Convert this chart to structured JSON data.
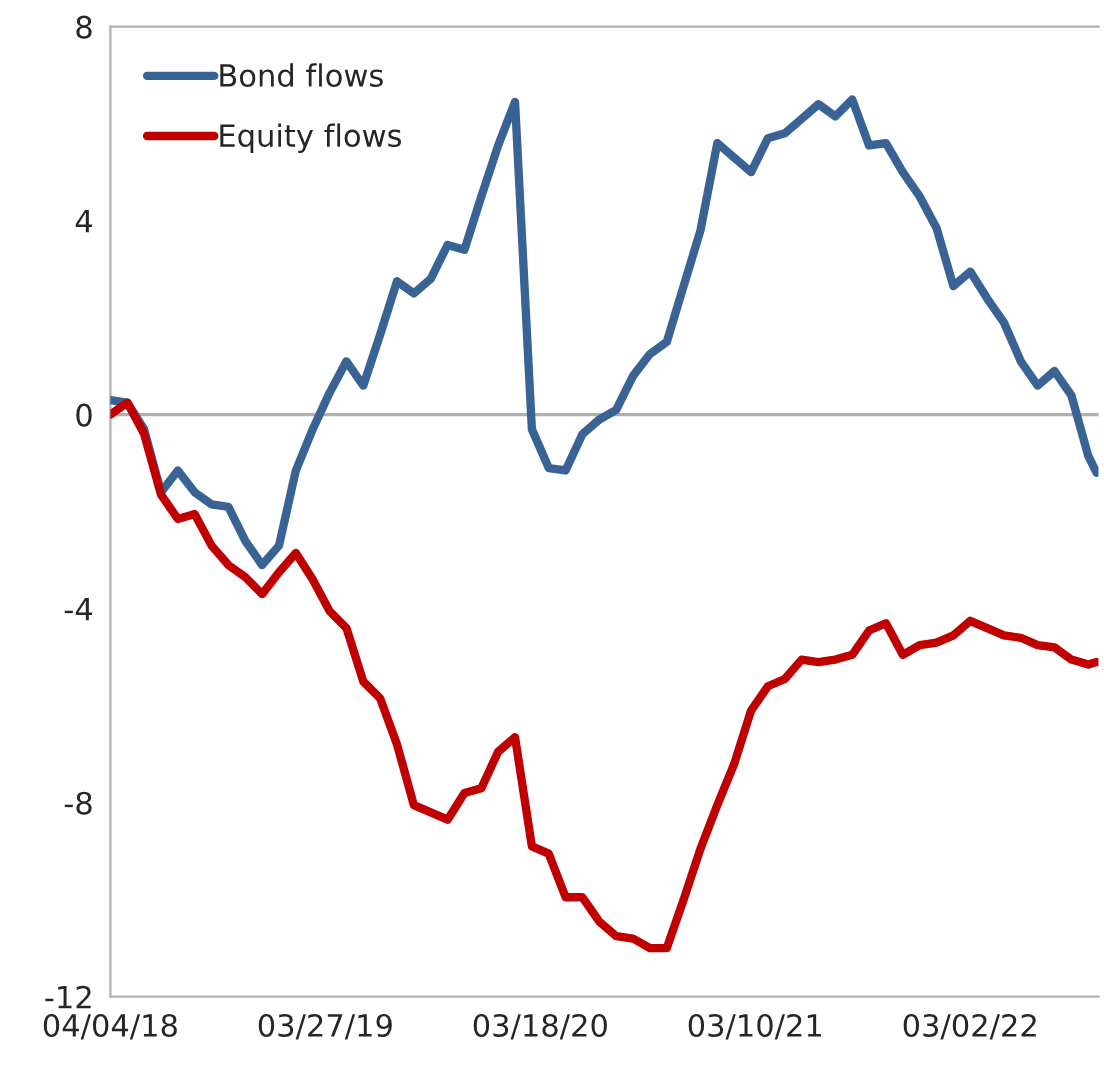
{
  "chart_data": {
    "type": "line",
    "x": [
      "2018-04-04",
      "2018-05-02",
      "2018-05-30",
      "2018-06-27",
      "2018-07-25",
      "2018-08-22",
      "2018-09-19",
      "2018-10-17",
      "2018-11-14",
      "2018-12-12",
      "2019-01-09",
      "2019-02-06",
      "2019-03-06",
      "2019-04-03",
      "2019-05-01",
      "2019-05-29",
      "2019-06-26",
      "2019-07-24",
      "2019-08-21",
      "2019-09-18",
      "2019-10-16",
      "2019-11-13",
      "2019-12-11",
      "2020-01-08",
      "2020-02-05",
      "2020-03-04",
      "2020-04-01",
      "2020-04-29",
      "2020-05-27",
      "2020-06-24",
      "2020-07-22",
      "2020-08-19",
      "2020-09-16",
      "2020-10-14",
      "2020-11-11",
      "2020-12-09",
      "2021-01-06",
      "2021-02-03",
      "2021-03-03",
      "2021-03-31",
      "2021-04-28",
      "2021-05-26",
      "2021-06-23",
      "2021-07-21",
      "2021-08-18",
      "2021-09-15",
      "2021-10-13",
      "2021-11-10",
      "2021-12-08",
      "2022-01-05",
      "2022-02-02",
      "2022-03-02",
      "2022-03-30",
      "2022-04-27",
      "2022-05-25",
      "2022-06-22",
      "2022-07-20",
      "2022-08-17",
      "2022-09-14",
      "2022-09-28"
    ],
    "series": [
      {
        "name": "Bond flows",
        "color": "#3a6395",
        "values": [
          0.3,
          0.25,
          -0.3,
          -1.6,
          -1.15,
          -1.6,
          -1.85,
          -1.9,
          -2.6,
          -3.1,
          -2.7,
          -1.15,
          -0.3,
          0.45,
          1.1,
          0.6,
          1.65,
          2.75,
          2.5,
          2.8,
          3.5,
          3.4,
          4.5,
          5.55,
          6.45,
          -0.3,
          -1.1,
          -1.15,
          -0.4,
          -0.1,
          0.1,
          0.8,
          1.25,
          1.5,
          2.65,
          3.8,
          5.6,
          5.3,
          5.0,
          5.7,
          5.8,
          6.1,
          6.4,
          6.15,
          6.5,
          5.55,
          5.6,
          5.0,
          4.5,
          3.85,
          2.65,
          2.95,
          2.4,
          1.9,
          1.1,
          0.6,
          0.9,
          0.4,
          -0.85,
          -1.2
        ]
      },
      {
        "name": "Equity flows",
        "color": "#c00000",
        "values": [
          0,
          0.25,
          -0.4,
          -1.65,
          -2.15,
          -2.05,
          -2.7,
          -3.1,
          -3.35,
          -3.7,
          -3.25,
          -2.85,
          -3.4,
          -4.05,
          -4.4,
          -5.5,
          -5.85,
          -6.8,
          -8.05,
          -8.2,
          -8.35,
          -7.8,
          -7.7,
          -6.95,
          -6.65,
          -8.9,
          -9.05,
          -9.95,
          -9.95,
          -10.45,
          -10.75,
          -10.8,
          -11.0,
          -11.0,
          -10.0,
          -8.95,
          -8.05,
          -7.2,
          -6.1,
          -5.6,
          -5.45,
          -5.05,
          -5.1,
          -5.05,
          -4.95,
          -4.45,
          -4.3,
          -4.95,
          -4.75,
          -4.7,
          -4.55,
          -4.25,
          -4.4,
          -4.55,
          -4.6,
          -4.75,
          -4.8,
          -5.05,
          -5.15,
          -5.1
        ]
      }
    ],
    "xlim": [
      "2018-04-04",
      "2022-10-01"
    ],
    "xticks": [
      {
        "value": "2018-04-04",
        "label": "04/04/18"
      },
      {
        "value": "2019-03-27",
        "label": "03/27/19"
      },
      {
        "value": "2020-03-18",
        "label": "03/18/20"
      },
      {
        "value": "2021-03-10",
        "label": "03/10/21"
      },
      {
        "value": "2022-03-02",
        "label": "03/02/22"
      }
    ],
    "ylim": [
      -12,
      8
    ],
    "yticks": [
      -12,
      -8,
      -4,
      0,
      4,
      8
    ],
    "ref_lines": [
      {
        "axis": "y",
        "value": 0,
        "color": "#b0b0b0"
      }
    ],
    "grid": false,
    "legend": "top left",
    "marker": "none",
    "line_style": "solid"
  }
}
